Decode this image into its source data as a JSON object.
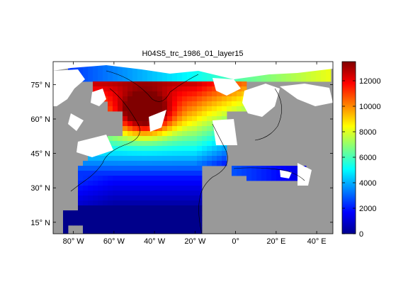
{
  "chart_data": {
    "type": "heatmap",
    "title": "H04S5_trc_1986_01_layer15",
    "map": {
      "lon_range": [
        -90,
        48
      ],
      "lat_range": [
        10,
        85
      ],
      "x_ticks": [
        {
          "value": -80,
          "label": "80° W"
        },
        {
          "value": -60,
          "label": "60° W"
        },
        {
          "value": -40,
          "label": "40° W"
        },
        {
          "value": -20,
          "label": "20° W"
        },
        {
          "value": 0,
          "label": "0°"
        },
        {
          "value": 20,
          "label": "20° E"
        },
        {
          "value": 40,
          "label": "40° E"
        }
      ],
      "y_ticks": [
        {
          "value": 15,
          "label": "15° N"
        },
        {
          "value": 30,
          "label": "30° N"
        },
        {
          "value": 45,
          "label": "45° N"
        },
        {
          "value": 60,
          "label": "60° N"
        },
        {
          "value": 75,
          "label": "75° N"
        }
      ],
      "land_color": "#999999",
      "nodata_color": "#ffffff",
      "field_description": "tracer concentration: low (<1000) in subtropical/tropical Atlantic, increasing northward to max (~13000) in Labrador Sea / Irminger Sea region"
    },
    "colorbar": {
      "range": [
        0,
        13500
      ],
      "ticks": [
        0,
        2000,
        4000,
        6000,
        8000,
        10000,
        12000
      ],
      "colormap": "jet"
    }
  }
}
